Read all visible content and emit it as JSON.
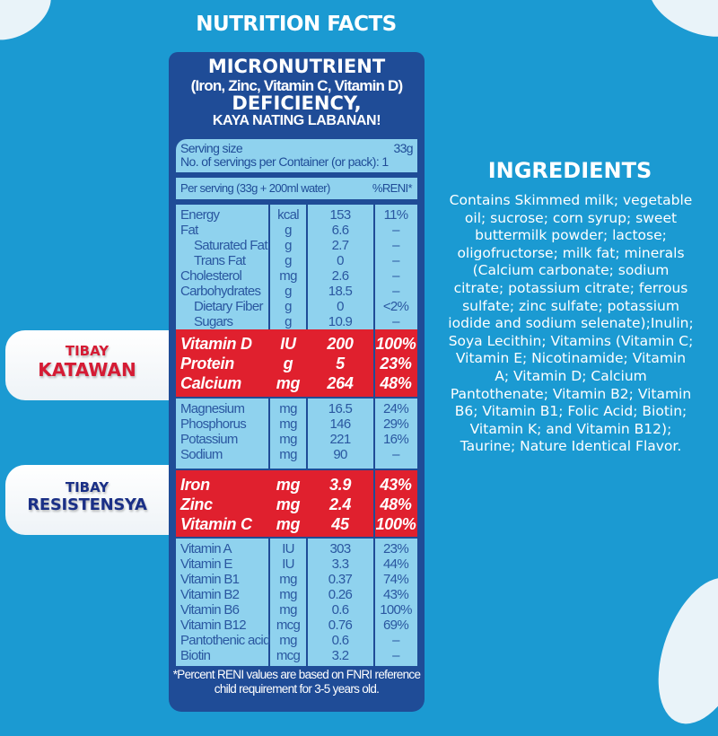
{
  "title": "NUTRITION FACTS",
  "colors": {
    "background": "#1b9ad2",
    "panel": "#1f4c97",
    "table": "#8fd2ee",
    "highlight": "#e0202e"
  },
  "header": {
    "line1": "MICRONUTRIENT",
    "line2": "(Iron, Zinc, Vitamin C, Vitamin D)",
    "line3": "DEFICIENCY,",
    "line4": "KAYA NATING LABANAN!"
  },
  "serving": {
    "size_label": "Serving size",
    "size_value": "33g",
    "per_container": "No. of servings per Container (or pack): 1"
  },
  "table_header": {
    "per_serving": "Per serving (33g + 200ml water)",
    "reni": "%RENI*"
  },
  "blocks": [
    {
      "highlight": false,
      "rows": [
        [
          "Energy",
          "kcal",
          "153",
          "11%"
        ],
        [
          "Fat",
          "g",
          "6.6",
          "–"
        ],
        [
          "  Saturated Fat",
          "g",
          "2.7",
          "–"
        ],
        [
          "  Trans Fat",
          "g",
          "0",
          "–"
        ],
        [
          "Cholesterol",
          "mg",
          "2.6",
          "–"
        ],
        [
          "Carbohydrates",
          "g",
          "18.5",
          "–"
        ],
        [
          "  Dietary Fiber",
          "g",
          "0",
          "<2%"
        ],
        [
          "  Sugars",
          "g",
          "10.9",
          "–"
        ]
      ]
    },
    {
      "highlight": true,
      "rows": [
        [
          "Vitamin D",
          "IU",
          "200",
          "100%"
        ],
        [
          "Protein",
          "g",
          "5",
          "23%"
        ],
        [
          "Calcium",
          "mg",
          "264",
          "48%"
        ]
      ]
    },
    {
      "highlight": false,
      "rows": [
        [
          "Magnesium",
          "mg",
          "16.5",
          "24%"
        ],
        [
          "Phosphorus",
          "mg",
          "146",
          "29%"
        ],
        [
          "Potassium",
          "mg",
          "221",
          "16%"
        ],
        [
          "Sodium",
          "mg",
          "90",
          "–"
        ]
      ]
    },
    {
      "highlight": true,
      "rows": [
        [
          "Iron",
          "mg",
          "3.9",
          "43%"
        ],
        [
          "Zinc",
          "mg",
          "2.4",
          "48%"
        ],
        [
          "Vitamin C",
          "mg",
          "45",
          "100%"
        ]
      ]
    },
    {
      "highlight": false,
      "rows": [
        [
          "Vitamin A",
          "IU",
          "303",
          "23%"
        ],
        [
          "Vitamin E",
          "IU",
          "3.3",
          "44%"
        ],
        [
          "Vitamin B1",
          "mg",
          "0.37",
          "74%"
        ],
        [
          "Vitamin B2",
          "mg",
          "0.26",
          "43%"
        ],
        [
          "Vitamin B6",
          "mg",
          "0.6",
          "100%"
        ],
        [
          "Vitamin B12",
          "mcg",
          "0.76",
          "69%"
        ],
        [
          "Pantothenic acid",
          "mg",
          "0.6",
          "–"
        ],
        [
          "Biotin",
          "mcg",
          "3.2",
          "–"
        ]
      ]
    }
  ],
  "footnote": {
    "line1": "*Percent RENI values are based on FNRI reference",
    "line2": "child requirement for 3-5 years old."
  },
  "labels": {
    "katawan": {
      "top": "TIBAY",
      "bottom": "KATAWAN"
    },
    "resistensya": {
      "top": "TIBAY",
      "bottom": "RESISTENSYA"
    }
  },
  "ingredients": {
    "title": "INGREDIENTS",
    "lines": [
      "Contains Skimmed milk; vegetable",
      "oil; sucrose; corn syrup; sweet",
      "buttermilk powder; lactose;",
      "oligofructorse; milk fat; minerals",
      "(Calcium carbonate; sodium",
      "citrate; potassium citrate; ferrous",
      "sulfate; zinc sulfate; potassium",
      "iodide and sodium selenate);Inulin;",
      "Soya Lecithin; Vitamins (Vitamin C;",
      "Vitamin E; Nicotinamide; Vitamin",
      "A; Vitamin D; Calcium",
      "Pantothenate; Vitamin B2; Vitamin",
      "B6; Vitamin B1; Folic Acid; Biotin;",
      "Vitamin K; and Vitamin B12);",
      "Taurine; Nature Identical Flavor."
    ]
  }
}
